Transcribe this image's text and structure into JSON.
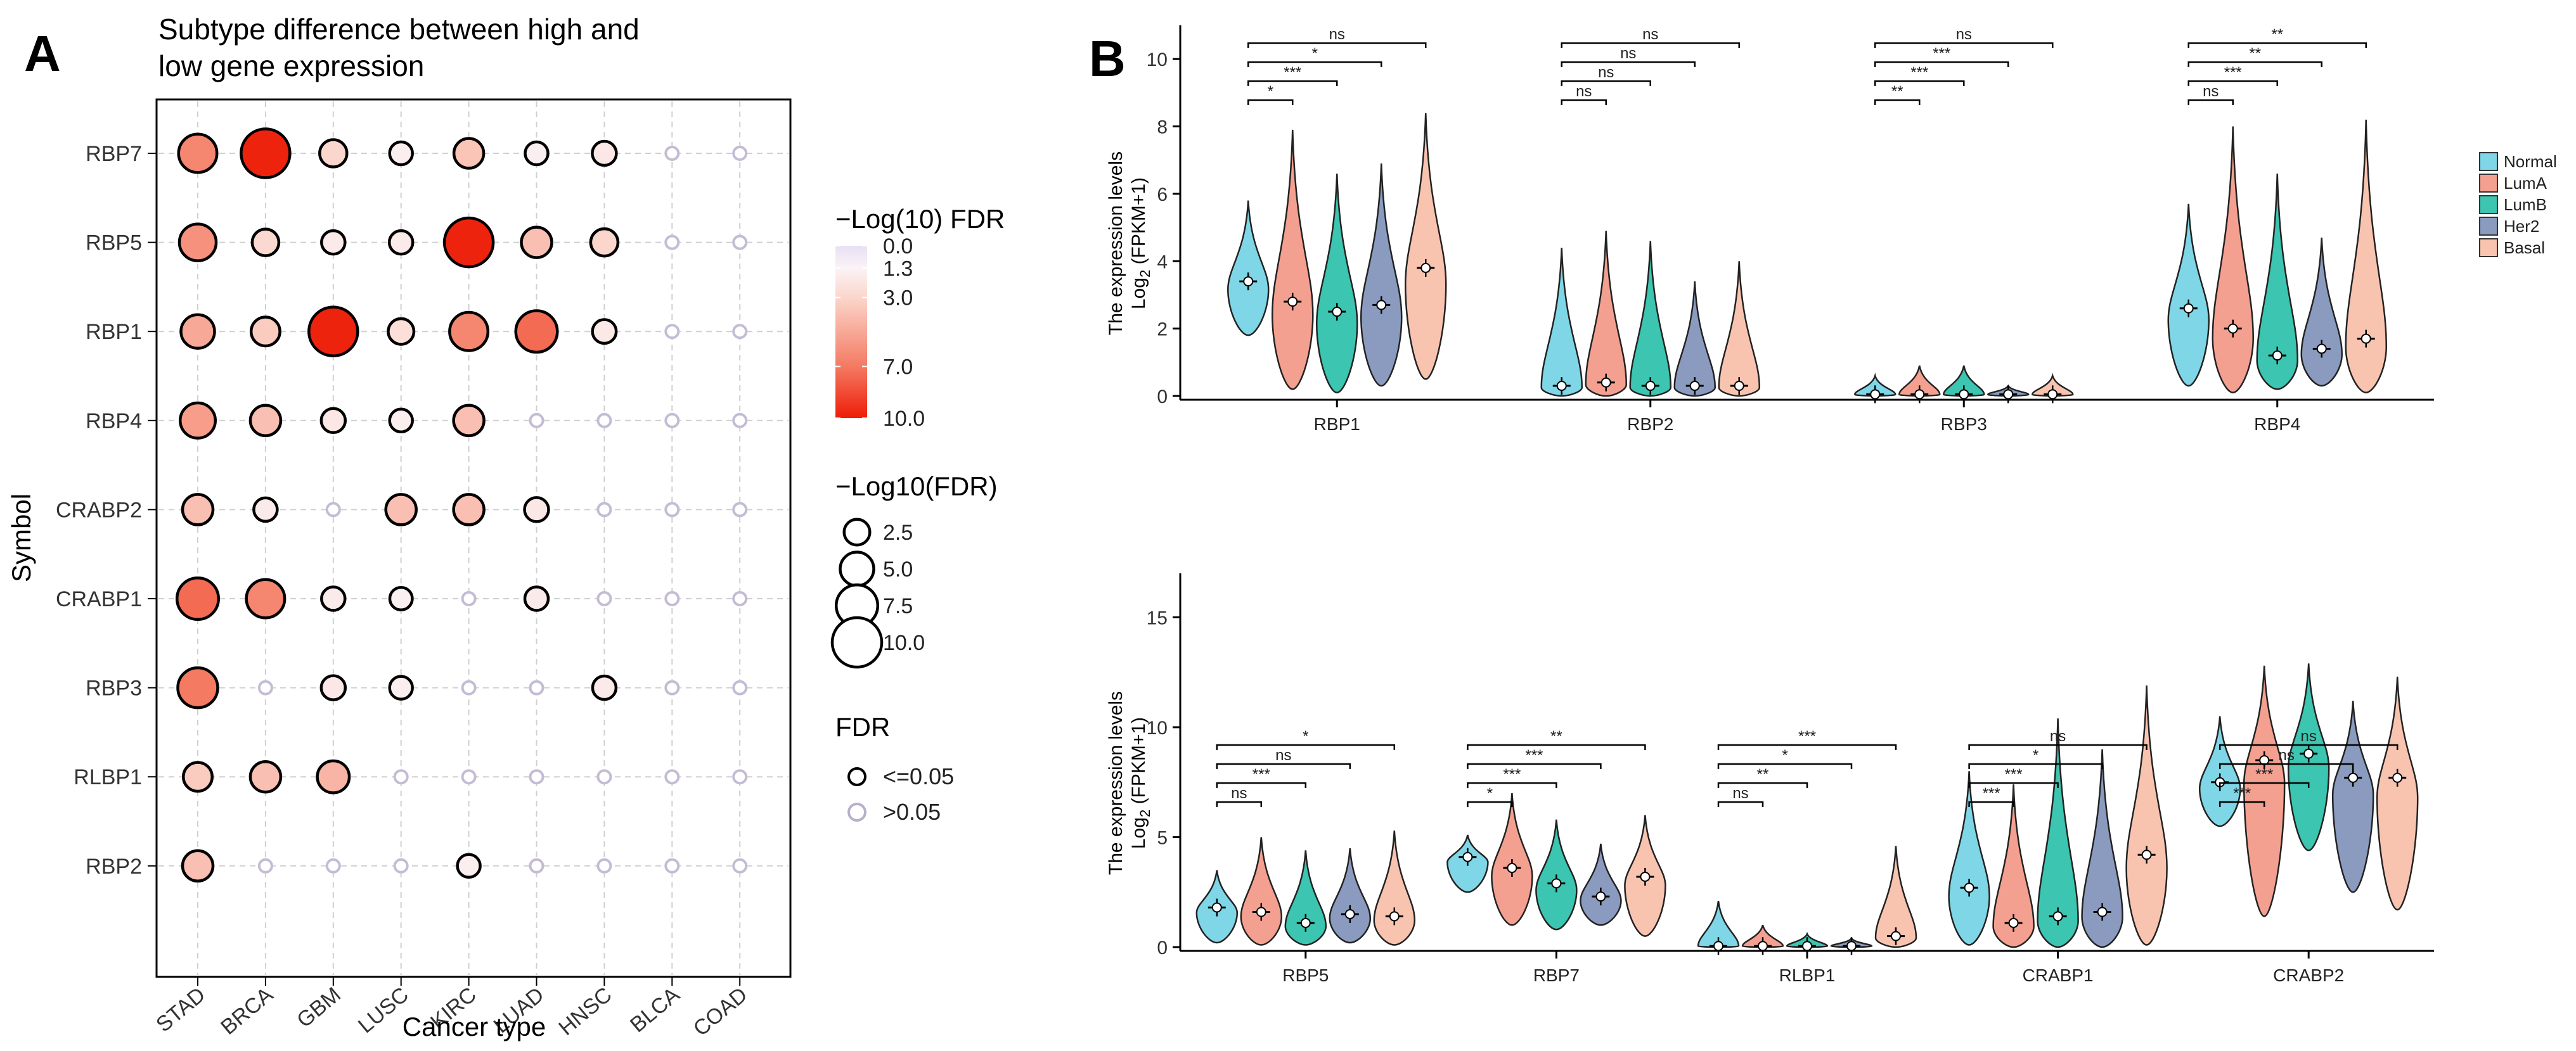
{
  "panel_a": {
    "panel_label": "A",
    "title_line1": "Subtype difference between high and",
    "title_line2": "low gene expression",
    "xlabel": "Cancer type",
    "ylabel": "Symbol",
    "color_legend": {
      "title": "−Log(10) FDR",
      "ticks": [
        "0.0",
        "1.3",
        "3.0",
        "7.0",
        "10.0"
      ]
    },
    "size_legend": {
      "title": "−Log10(FDR)",
      "labels": [
        "2.5",
        "5.0",
        "7.5",
        "10.0"
      ]
    },
    "fdr_legend": {
      "title": "FDR",
      "labels": [
        "<=0.05",
        ">0.05"
      ]
    }
  },
  "panel_b": {
    "panel_label": "B",
    "ylabel_line1": "The expression levels",
    "ylabel_line2": "Log",
    "ylabel_sub": "2",
    "ylabel_rest": " (FPKM+1)",
    "legend": [
      "Normal",
      "LumA",
      "LumB",
      "Her2",
      "Basal"
    ],
    "colors": {
      "Normal": "#7fd6e6",
      "LumA": "#f4a090",
      "LumB": "#3cc5b0",
      "Her2": "#8a9bbf",
      "Basal": "#f8c4b0"
    }
  },
  "chart_data": [
    {
      "type": "scatter",
      "subtype": "dot-plot",
      "title": "Subtype difference between high and low gene expression",
      "xlabel": "Cancer type",
      "ylabel": "Symbol",
      "x_categories": [
        "STAD",
        "BRCA",
        "GBM",
        "LUSC",
        "KIRC",
        "LUAD",
        "HNSC",
        "BLCA",
        "COAD"
      ],
      "y_categories": [
        "RBP7",
        "RBP5",
        "RBP1",
        "RBP4",
        "CRABP2",
        "CRABP1",
        "RBP3",
        "RLBP1",
        "RBP2"
      ],
      "color_scale": {
        "label": "-Log(10) FDR",
        "min": 0,
        "max": 10
      },
      "values_neglog10_fdr": [
        [
          6.5,
          9.8,
          3.0,
          1.6,
          3.8,
          1.6,
          2.0,
          0.3,
          0.3
        ],
        [
          6.0,
          2.8,
          1.8,
          1.8,
          9.8,
          4.0,
          3.0,
          0.3,
          0.3
        ],
        [
          5.0,
          3.5,
          9.8,
          2.5,
          6.5,
          7.5,
          1.9,
          1.0,
          0.3
        ],
        [
          5.5,
          4.0,
          2.0,
          1.6,
          4.0,
          0.5,
          0.5,
          0.5,
          0.3
        ],
        [
          4.0,
          1.8,
          0.8,
          4.0,
          4.0,
          2.0,
          1.0,
          0.3,
          0.3
        ],
        [
          7.5,
          6.5,
          1.8,
          1.5,
          0.8,
          1.8,
          0.5,
          0.3,
          0.3
        ],
        [
          7.0,
          0.3,
          2.0,
          1.6,
          1.0,
          0.5,
          1.8,
          0.3,
          0.3
        ],
        [
          3.5,
          4.0,
          4.5,
          0.8,
          0.8,
          0.5,
          0.5,
          0.3,
          0.3
        ],
        [
          4.0,
          1.0,
          0.8,
          0.8,
          1.6,
          0.5,
          0.5,
          0.3,
          0.3
        ]
      ],
      "significant_fdr_le_0_05": [
        [
          1,
          1,
          1,
          1,
          1,
          1,
          1,
          0,
          0
        ],
        [
          1,
          1,
          1,
          1,
          1,
          1,
          1,
          0,
          0
        ],
        [
          1,
          1,
          1,
          1,
          1,
          1,
          1,
          0,
          0
        ],
        [
          1,
          1,
          1,
          1,
          1,
          0,
          0,
          0,
          0
        ],
        [
          1,
          1,
          0,
          1,
          1,
          1,
          0,
          0,
          0
        ],
        [
          1,
          1,
          1,
          1,
          0,
          1,
          0,
          0,
          0
        ],
        [
          1,
          0,
          1,
          1,
          0,
          0,
          1,
          0,
          0
        ],
        [
          1,
          1,
          1,
          0,
          0,
          0,
          0,
          0,
          0
        ],
        [
          1,
          0,
          0,
          0,
          1,
          0,
          0,
          0,
          0
        ]
      ],
      "size_legend": [
        2.5,
        5.0,
        7.5,
        10.0
      ]
    },
    {
      "type": "violin",
      "ylabel": "The expression levels Log2 (FPKM+1)",
      "ylim": [
        0,
        11
      ],
      "yticks": [
        0,
        2,
        4,
        6,
        8,
        10
      ],
      "series_names": [
        "Normal",
        "LumA",
        "LumB",
        "Her2",
        "Basal"
      ],
      "genes": [
        {
          "name": "RBP1",
          "medians": [
            3.4,
            2.8,
            2.5,
            2.7,
            3.8
          ],
          "maxes": [
            5.8,
            7.9,
            6.6,
            6.9,
            8.4
          ],
          "mins": [
            1.8,
            0.2,
            0.1,
            0.3,
            0.5
          ],
          "brackets": [
            {
              "to": "LumA",
              "label": "*"
            },
            {
              "to": "LumB",
              "label": "***"
            },
            {
              "to": "Her2",
              "label": "*"
            },
            {
              "to": "Basal",
              "label": "ns"
            }
          ]
        },
        {
          "name": "RBP2",
          "medians": [
            0.3,
            0.4,
            0.3,
            0.3,
            0.3
          ],
          "maxes": [
            4.4,
            4.9,
            4.6,
            3.4,
            4.0
          ],
          "mins": [
            0,
            0,
            0,
            0,
            0
          ],
          "brackets": [
            {
              "to": "LumA",
              "label": "ns"
            },
            {
              "to": "LumB",
              "label": "ns"
            },
            {
              "to": "Her2",
              "label": "ns"
            },
            {
              "to": "Basal",
              "label": "ns"
            }
          ]
        },
        {
          "name": "RBP3",
          "medians": [
            0.05,
            0.05,
            0.05,
            0.05,
            0.05
          ],
          "maxes": [
            0.6,
            0.9,
            0.9,
            0.3,
            0.6
          ],
          "mins": [
            0,
            0,
            0,
            0,
            0
          ],
          "brackets": [
            {
              "to": "LumA",
              "label": "**"
            },
            {
              "to": "LumB",
              "label": "***"
            },
            {
              "to": "Her2",
              "label": "***"
            },
            {
              "to": "Basal",
              "label": "ns"
            }
          ]
        },
        {
          "name": "RBP4",
          "medians": [
            2.6,
            2.0,
            1.2,
            1.4,
            1.7
          ],
          "maxes": [
            5.7,
            8.0,
            6.6,
            4.7,
            8.2
          ],
          "mins": [
            0.3,
            0.1,
            0.2,
            0.3,
            0.1
          ],
          "brackets": [
            {
              "to": "LumA",
              "label": "ns"
            },
            {
              "to": "LumB",
              "label": "***"
            },
            {
              "to": "Her2",
              "label": "**"
            },
            {
              "to": "Basal",
              "label": "**"
            }
          ]
        }
      ]
    },
    {
      "type": "violin",
      "ylabel": "The expression levels Log2 (FPKM+1)",
      "ylim": [
        0,
        17
      ],
      "yticks": [
        0,
        5,
        10,
        15
      ],
      "series_names": [
        "Normal",
        "LumA",
        "LumB",
        "Her2",
        "Basal"
      ],
      "genes": [
        {
          "name": "RBP5",
          "medians": [
            1.8,
            1.6,
            1.1,
            1.5,
            1.4
          ],
          "maxes": [
            3.5,
            5.0,
            4.4,
            4.5,
            5.3
          ],
          "mins": [
            0.2,
            0.1,
            0.1,
            0.2,
            0.1
          ],
          "brackets": [
            {
              "to": "LumA",
              "label": "ns"
            },
            {
              "to": "LumB",
              "label": "***"
            },
            {
              "to": "Her2",
              "label": "ns"
            },
            {
              "to": "Basal",
              "label": "*"
            }
          ]
        },
        {
          "name": "RBP7",
          "medians": [
            4.1,
            3.6,
            2.9,
            2.3,
            3.2
          ],
          "maxes": [
            5.1,
            7.0,
            5.8,
            4.7,
            6.0
          ],
          "mins": [
            2.5,
            1.0,
            0.8,
            1.0,
            0.5
          ],
          "brackets": [
            {
              "to": "LumA",
              "label": "*"
            },
            {
              "to": "LumB",
              "label": "***"
            },
            {
              "to": "Her2",
              "label": "***"
            },
            {
              "to": "Basal",
              "label": "**"
            }
          ]
        },
        {
          "name": "RLBP1",
          "medians": [
            0.05,
            0.05,
            0.05,
            0.05,
            0.5
          ],
          "maxes": [
            2.1,
            1.0,
            0.6,
            0.4,
            4.6
          ],
          "mins": [
            0,
            0,
            0,
            0,
            0
          ],
          "brackets": [
            {
              "to": "LumA",
              "label": "ns"
            },
            {
              "to": "LumB",
              "label": "**"
            },
            {
              "to": "Her2",
              "label": "*"
            },
            {
              "to": "Basal",
              "label": "***"
            }
          ]
        },
        {
          "name": "CRABP1",
          "medians": [
            2.7,
            1.1,
            1.4,
            1.6,
            4.2
          ],
          "maxes": [
            8.0,
            7.4,
            10.4,
            9.0,
            11.9
          ],
          "mins": [
            0.1,
            0,
            0,
            0,
            0.1
          ],
          "brackets": [
            {
              "to": "LumA",
              "label": "***"
            },
            {
              "to": "LumB",
              "label": "***"
            },
            {
              "to": "Her2",
              "label": "*"
            },
            {
              "to": "Basal",
              "label": "ns"
            }
          ]
        },
        {
          "name": "CRABP2",
          "medians": [
            7.5,
            8.5,
            8.8,
            7.7,
            7.7
          ],
          "maxes": [
            10.5,
            12.8,
            12.9,
            11.2,
            12.3
          ],
          "mins": [
            5.5,
            1.4,
            4.4,
            2.5,
            1.7
          ],
          "brackets": [
            {
              "to": "LumA",
              "label": "***"
            },
            {
              "to": "LumB",
              "label": "***"
            },
            {
              "to": "Her2",
              "label": "ns"
            },
            {
              "to": "Basal",
              "label": "ns"
            }
          ]
        }
      ]
    }
  ]
}
